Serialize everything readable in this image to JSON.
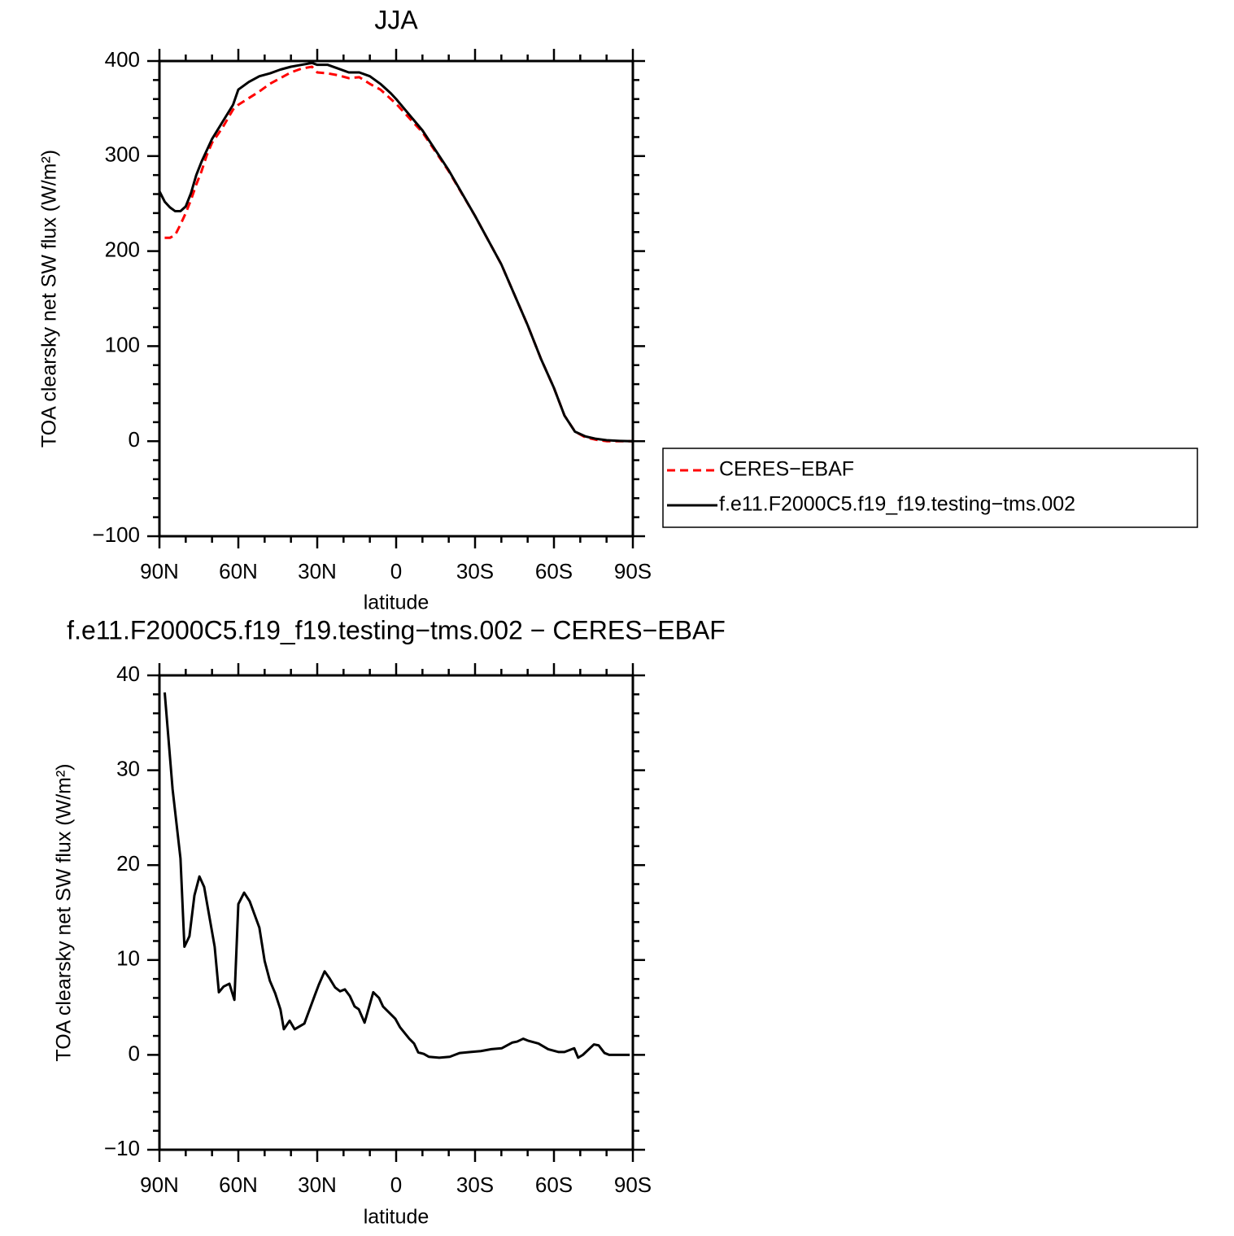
{
  "chart_data": [
    {
      "type": "line",
      "title": "JJA",
      "xlabel": "latitude",
      "ylabel": "TOA clearsky net SW flux (W/m²)",
      "x": [
        90,
        88,
        86,
        84,
        82,
        80,
        78,
        76,
        74,
        72,
        70,
        66,
        62,
        60,
        56,
        52,
        48,
        44,
        40,
        36,
        32,
        30,
        26,
        22,
        18,
        14,
        10,
        6,
        2,
        0,
        -10,
        -20,
        -30,
        -40,
        -50,
        -55,
        -60,
        -64,
        -68,
        -72,
        -76,
        -80,
        -85,
        -90
      ],
      "series": [
        {
          "name": "CERES−EBAF",
          "color": "#ff0000",
          "linestyle": "dashed",
          "values": [
            null,
            214,
            214,
            217,
            228,
            240,
            254,
            270,
            284,
            301,
            314,
            330,
            349,
            354,
            361,
            368,
            376,
            382,
            388,
            392,
            394,
            388,
            387,
            385,
            382,
            383,
            376,
            370,
            360,
            355,
            325,
            284,
            237,
            186,
            122,
            87,
            56,
            27,
            10,
            4,
            1.5,
            0,
            0,
            0
          ]
        },
        {
          "name": "f.e11.F2000C5.f19_f19.testing−tms.002",
          "color": "#000000",
          "linestyle": "solid",
          "values": [
            263,
            252,
            246,
            242,
            242,
            247,
            261,
            280,
            294,
            306,
            318,
            336,
            354,
            370,
            378,
            384,
            387,
            391,
            394,
            396,
            398,
            396,
            396,
            392,
            388,
            388,
            384,
            376,
            366,
            360,
            327,
            285,
            237,
            186,
            122,
            87,
            56,
            27,
            10,
            5,
            2.5,
            1,
            0.3,
            0
          ]
        }
      ],
      "xlim": [
        90,
        -90
      ],
      "xticks": [
        {
          "value": 90,
          "label": "90N"
        },
        {
          "value": 60,
          "label": "60N"
        },
        {
          "value": 30,
          "label": "30N"
        },
        0,
        {
          "value": -30,
          "label": "30S"
        },
        {
          "value": -60,
          "label": "60S"
        },
        {
          "value": -90,
          "label": "90S"
        }
      ],
      "xminorticks": [
        80,
        70,
        50,
        40,
        20,
        10,
        -10,
        -20,
        -40,
        -50,
        -70,
        -80
      ],
      "ylim": [
        -100,
        400
      ],
      "yticks": [
        {
          "value": -100,
          "label": "−100"
        },
        0,
        100,
        200,
        300,
        400
      ],
      "yminorticks": [
        -80,
        -60,
        -40,
        -20,
        20,
        40,
        60,
        80,
        120,
        140,
        160,
        180,
        220,
        240,
        260,
        280,
        320,
        340,
        360,
        380
      ],
      "legend": "right"
    },
    {
      "type": "line",
      "title": "f.e11.F2000C5.f19_f19.testing−tms.002 − CERES−EBAF",
      "xlabel": "latitude",
      "ylabel": "TOA clearsky net SW flux (W/m²)",
      "x": [
        88,
        85,
        82,
        80.5,
        78.6,
        76.7,
        74.8,
        73,
        69,
        67.4,
        65.6,
        63.4,
        61.5,
        60,
        57.8,
        55.7,
        52,
        50,
        48,
        46,
        44,
        42.7,
        40.5,
        38.6,
        34.9,
        30.9,
        29.4,
        27.2,
        25.4,
        23.2,
        21.3,
        19.5,
        17.6,
        15.8,
        14.2,
        12,
        8.7,
        6.5,
        5,
        0.3,
        -1.5,
        -5,
        -6.8,
        -8.4,
        -10.5,
        -12.4,
        -16.4,
        -20.4,
        -22.3,
        -24.2,
        -28.2,
        -32.2,
        -36.2,
        -40.2,
        -44.2,
        -46,
        -48.3,
        -50.1,
        -54.1,
        -57.8,
        -61.8,
        -64,
        -67.7,
        -69.2,
        -71,
        -75.2,
        -77,
        -79.2,
        -81,
        -88.8
      ],
      "values": [
        38.2,
        28,
        20.7,
        11.4,
        12.5,
        16.8,
        18.8,
        17.7,
        11.4,
        6.6,
        7.2,
        7.5,
        5.8,
        15.9,
        17.1,
        16.2,
        13.4,
        9.9,
        7.8,
        6.5,
        4.8,
        2.7,
        3.6,
        2.7,
        3.3,
        6.3,
        7.4,
        8.8,
        8.1,
        7.1,
        6.7,
        6.9,
        6.2,
        5.1,
        4.8,
        3.4,
        6.6,
        6.0,
        5.1,
        3.8,
        2.9,
        1.7,
        1.2,
        0.26,
        0.1,
        -0.2,
        -0.3,
        -0.2,
        0,
        0.2,
        0.3,
        0.4,
        0.6,
        0.7,
        1.3,
        1.4,
        1.7,
        1.5,
        1.2,
        0.6,
        0.3,
        0.3,
        0.7,
        -0.3,
        0,
        1.1,
        1.0,
        0.2,
        0,
        0
      ],
      "color": "#000000",
      "linestyle": "solid",
      "xlim": [
        90,
        -90
      ],
      "xticks": [
        {
          "value": 90,
          "label": "90N"
        },
        {
          "value": 60,
          "label": "60N"
        },
        {
          "value": 30,
          "label": "30N"
        },
        0,
        {
          "value": -30,
          "label": "30S"
        },
        {
          "value": -60,
          "label": "60S"
        },
        {
          "value": -90,
          "label": "90S"
        }
      ],
      "xminorticks": [
        80,
        70,
        50,
        40,
        20,
        10,
        -10,
        -20,
        -40,
        -50,
        -70,
        -80
      ],
      "ylim": [
        -10,
        40
      ],
      "yticks": [
        {
          "value": -10,
          "label": "−10"
        },
        0,
        10,
        20,
        30,
        40
      ],
      "yminorticks": [
        -8,
        -6,
        -4,
        -2,
        2,
        4,
        6,
        8,
        12,
        14,
        16,
        18,
        22,
        24,
        26,
        28,
        32,
        34,
        36,
        38
      ]
    }
  ]
}
